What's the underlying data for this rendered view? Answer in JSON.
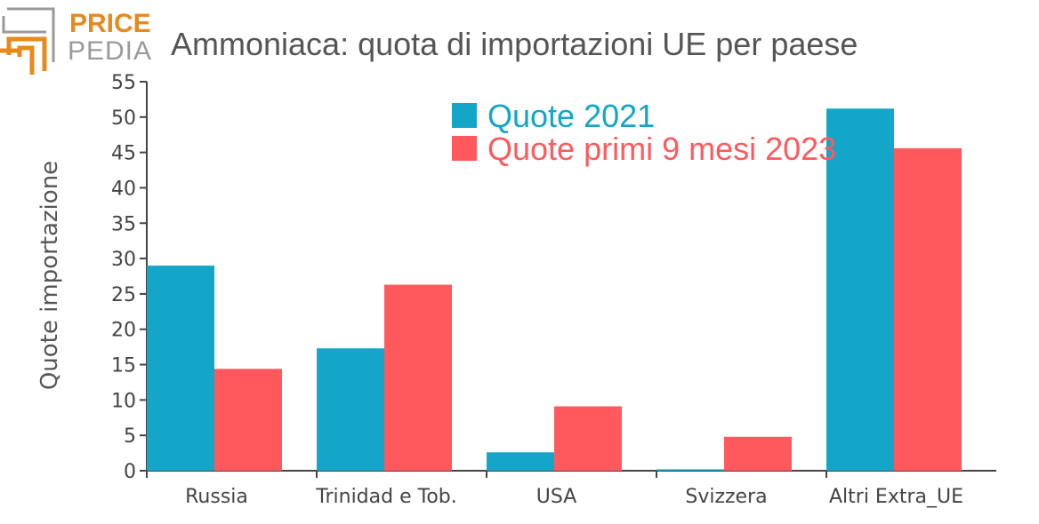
{
  "logo": {
    "top": "PRICE",
    "bottom": "PEDIA",
    "color_orange": "#e8891c",
    "color_gray": "#9a9a9a"
  },
  "chart_data": {
    "type": "bar",
    "title": "Ammoniaca: quota di importazioni UE per paese",
    "xlabel": "",
    "ylabel": "Quote importazione",
    "categories": [
      "Russia",
      "Trinidad e Tob.",
      "USA",
      "Svizzera",
      "Altri Extra_UE"
    ],
    "series": [
      {
        "name": "Quote 2021",
        "color": "#13a6c8",
        "values": [
          29.0,
          17.3,
          2.6,
          0.2,
          51.2
        ]
      },
      {
        "name": "Quote primi 9 mesi 2023",
        "color": "#ff595e",
        "values": [
          14.4,
          26.3,
          9.1,
          4.8,
          45.6
        ]
      }
    ],
    "ylim": [
      0,
      55
    ],
    "yticks": [
      0,
      5,
      10,
      15,
      20,
      25,
      30,
      35,
      40,
      45,
      50,
      55
    ],
    "grid": false,
    "legend": "top-center"
  }
}
